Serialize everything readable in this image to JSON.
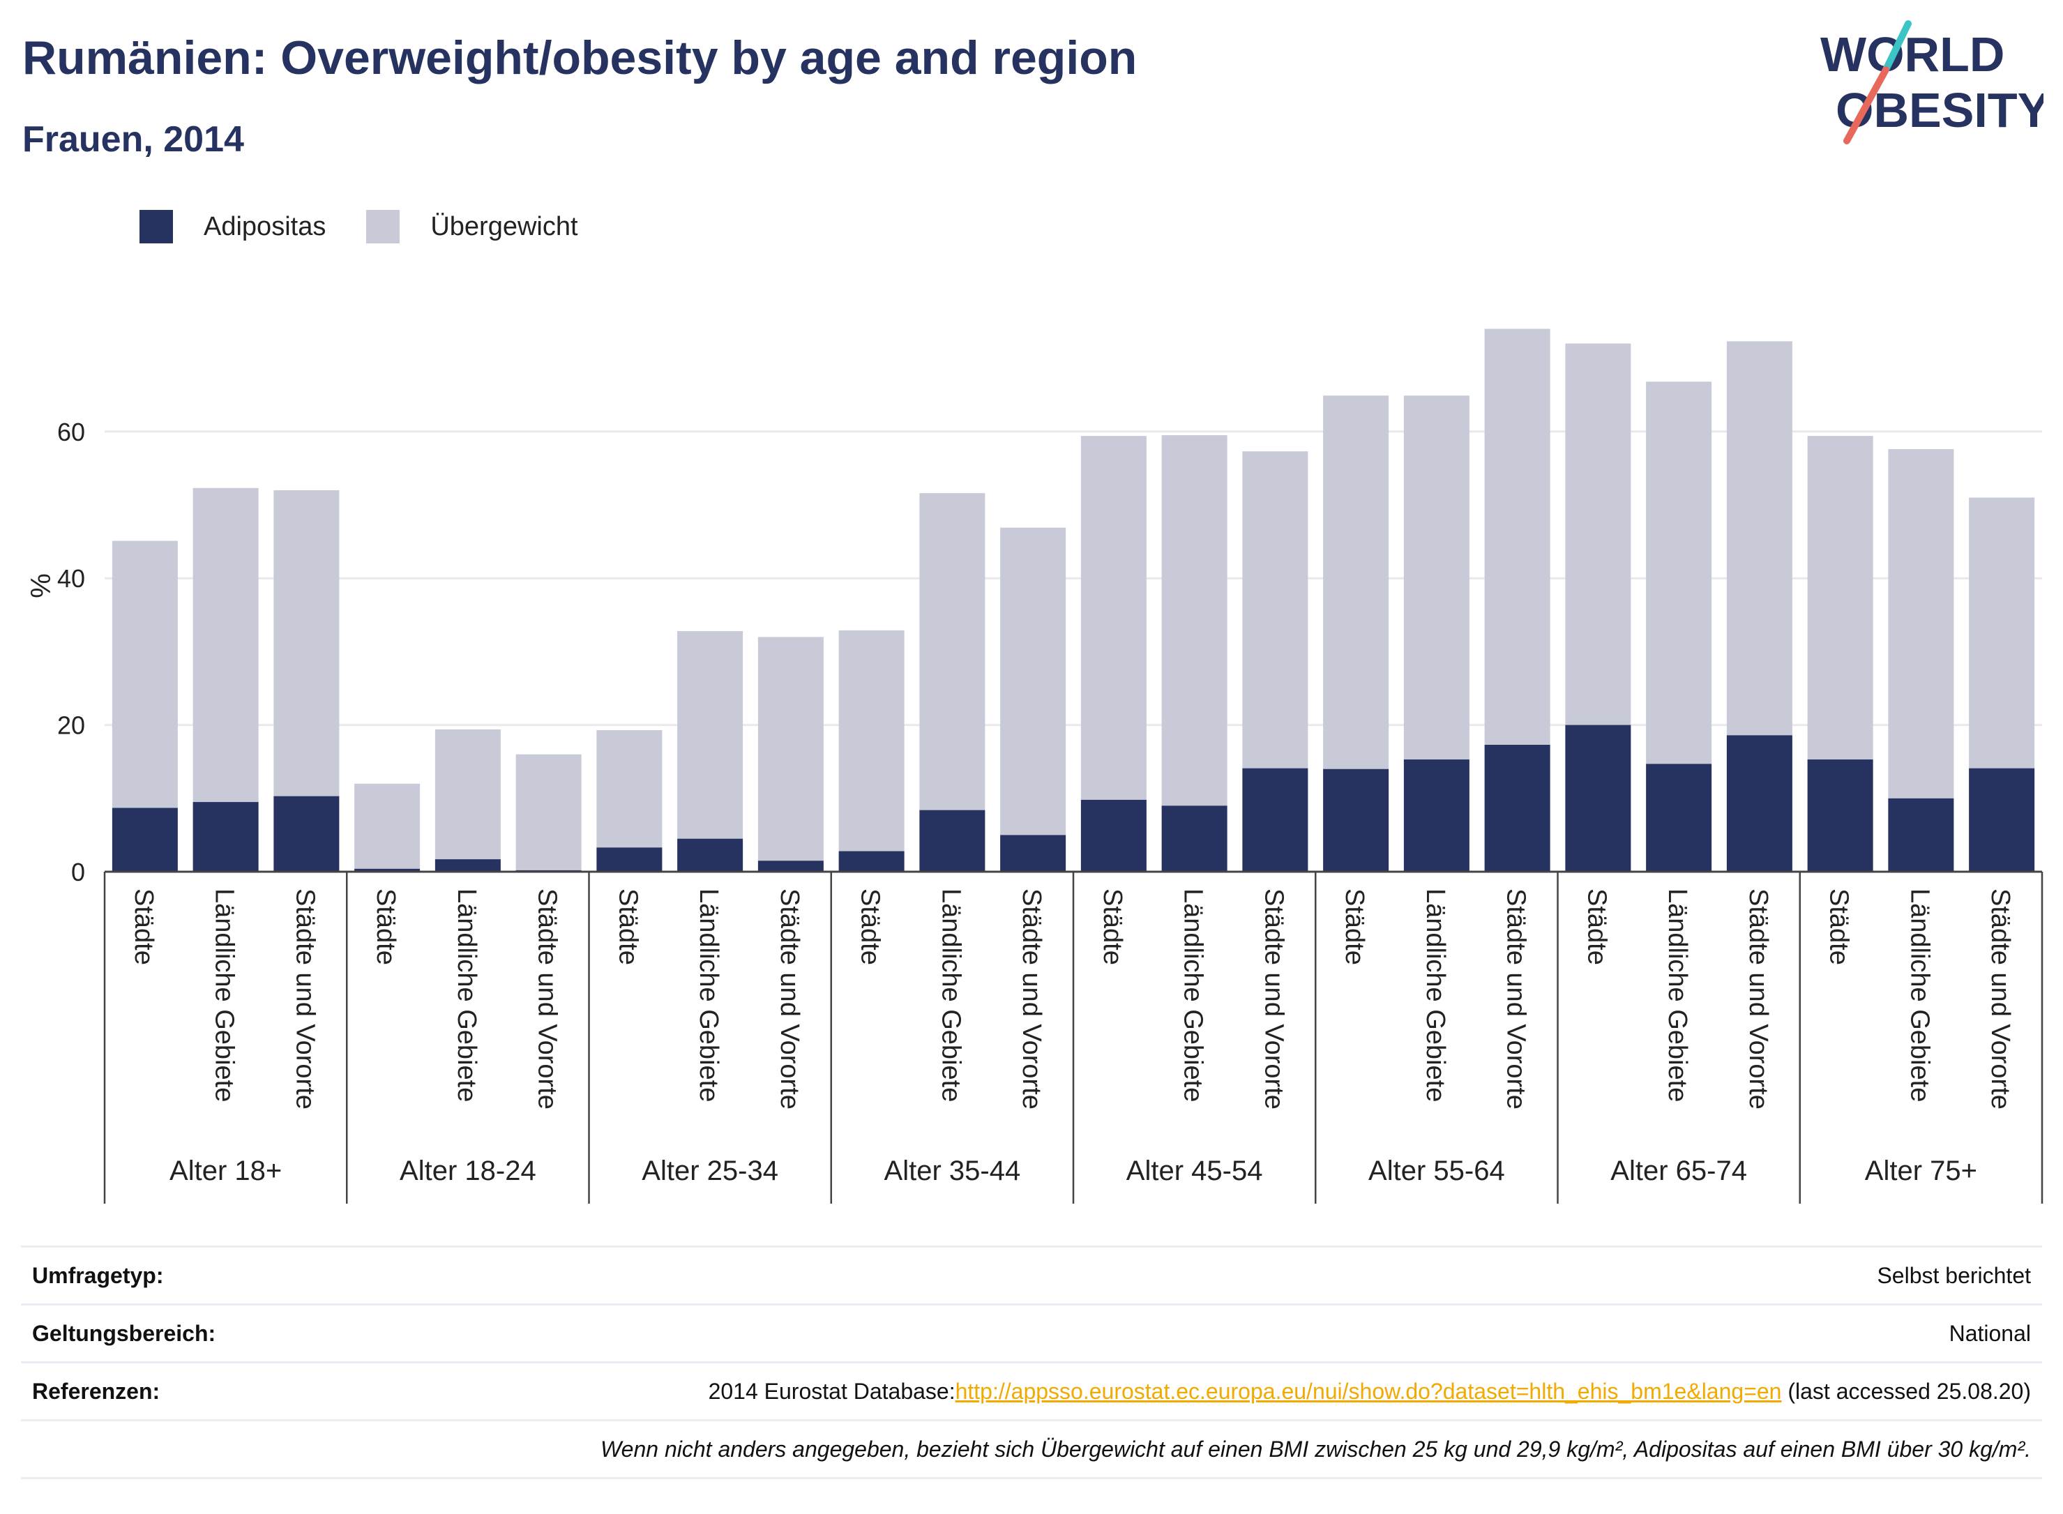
{
  "header": {
    "title": "Rumänien: Overweight/obesity by age and region",
    "subtitle": "Frauen, 2014"
  },
  "logo": {
    "line1": "WORLD",
    "line2": "OBESITY"
  },
  "colors": {
    "obesity": "#263260",
    "overweight": "#c8cad7",
    "accent_red": "#e8695b",
    "accent_teal": "#3cc3c3"
  },
  "legend": [
    {
      "label": "Adipositas",
      "color": "#263260"
    },
    {
      "label": "Übergewicht",
      "color": "#c8cad7"
    }
  ],
  "chart_data": {
    "type": "bar",
    "stacked": true,
    "ylabel": "%",
    "ylim": [
      0,
      80
    ],
    "yticks": [
      0,
      20,
      40,
      60
    ],
    "grid": true,
    "legend_position": "top-left",
    "groups": [
      {
        "label": "Alter 18+",
        "categories": [
          "Städte",
          "Ländliche Gebiete",
          "Städte und Vororte"
        ]
      },
      {
        "label": "Alter 18-24",
        "categories": [
          "Städte",
          "Ländliche Gebiete",
          "Städte und Vororte"
        ]
      },
      {
        "label": "Alter 25-34",
        "categories": [
          "Städte",
          "Ländliche Gebiete",
          "Städte und Vororte"
        ]
      },
      {
        "label": "Alter 35-44",
        "categories": [
          "Städte",
          "Ländliche Gebiete",
          "Städte und Vororte"
        ]
      },
      {
        "label": "Alter 45-54",
        "categories": [
          "Städte",
          "Ländliche Gebiete",
          "Städte und Vororte"
        ]
      },
      {
        "label": "Alter 55-64",
        "categories": [
          "Städte",
          "Ländliche Gebiete",
          "Städte und Vororte"
        ]
      },
      {
        "label": "Alter 65-74",
        "categories": [
          "Städte",
          "Ländliche Gebiete",
          "Städte und Vororte"
        ]
      },
      {
        "label": "Alter 75+",
        "categories": [
          "Städte",
          "Ländliche Gebiete",
          "Städte und Vororte"
        ]
      }
    ],
    "series": [
      {
        "name": "Adipositas",
        "color": "#263260",
        "values": [
          8.7,
          9.5,
          10.3,
          0.4,
          1.7,
          0.2,
          3.3,
          4.5,
          1.5,
          2.8,
          8.4,
          5.0,
          9.8,
          9.0,
          14.1,
          14.0,
          15.3,
          17.3,
          20.0,
          14.7,
          18.6,
          15.3,
          10.0,
          14.1
        ]
      },
      {
        "name": "Übergewicht",
        "color": "#c8cad7",
        "values": [
          36.4,
          42.8,
          41.7,
          11.6,
          17.7,
          15.8,
          16.0,
          28.3,
          30.5,
          30.1,
          43.2,
          41.9,
          49.6,
          50.5,
          43.2,
          50.9,
          49.6,
          56.7,
          52.0,
          52.1,
          53.7,
          44.1,
          47.6,
          36.9
        ]
      }
    ]
  },
  "info": {
    "rows": [
      {
        "label": "Umfragetyp:",
        "value": "Selbst berichtet"
      },
      {
        "label": "Geltungsbereich:",
        "value": "National"
      }
    ],
    "references": {
      "label": "Referenzen:",
      "prefix": "2014 Eurostat Database:",
      "link": "http://appsso.eurostat.ec.europa.eu/nui/show.do?dataset=hlth_ehis_bm1e&lang=en",
      "suffix": " (last accessed 25.08.20)"
    },
    "note": "Wenn nicht anders angegeben, bezieht sich Übergewicht auf einen BMI zwischen 25 kg und 29,9 kg/m², Adipositas auf einen BMI über 30 kg/m²."
  }
}
